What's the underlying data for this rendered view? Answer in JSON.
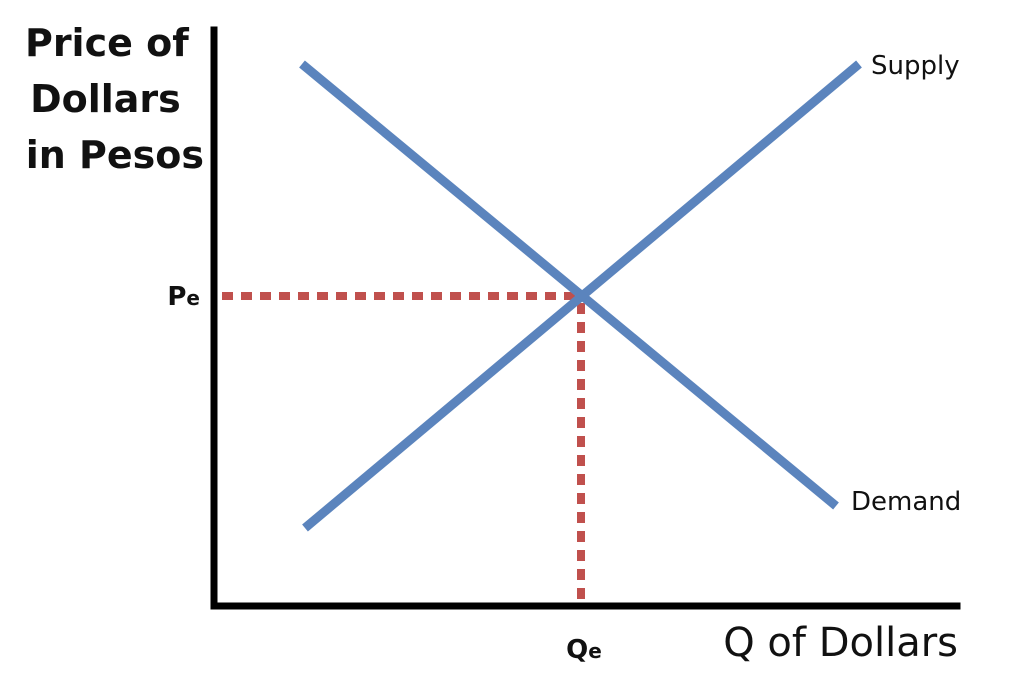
{
  "diagram": {
    "y_axis_title": [
      "Price of",
      "Dollars",
      "in Pesos"
    ],
    "x_axis_title": "Q of Dollars",
    "price_label": "Pe",
    "quantity_label": "Qe",
    "supply_label": "Supply",
    "demand_label": "Demand",
    "colors": {
      "curves": "#5b84bd",
      "equilibrium_guides": "#c0504d",
      "axes": "#000000"
    }
  }
}
